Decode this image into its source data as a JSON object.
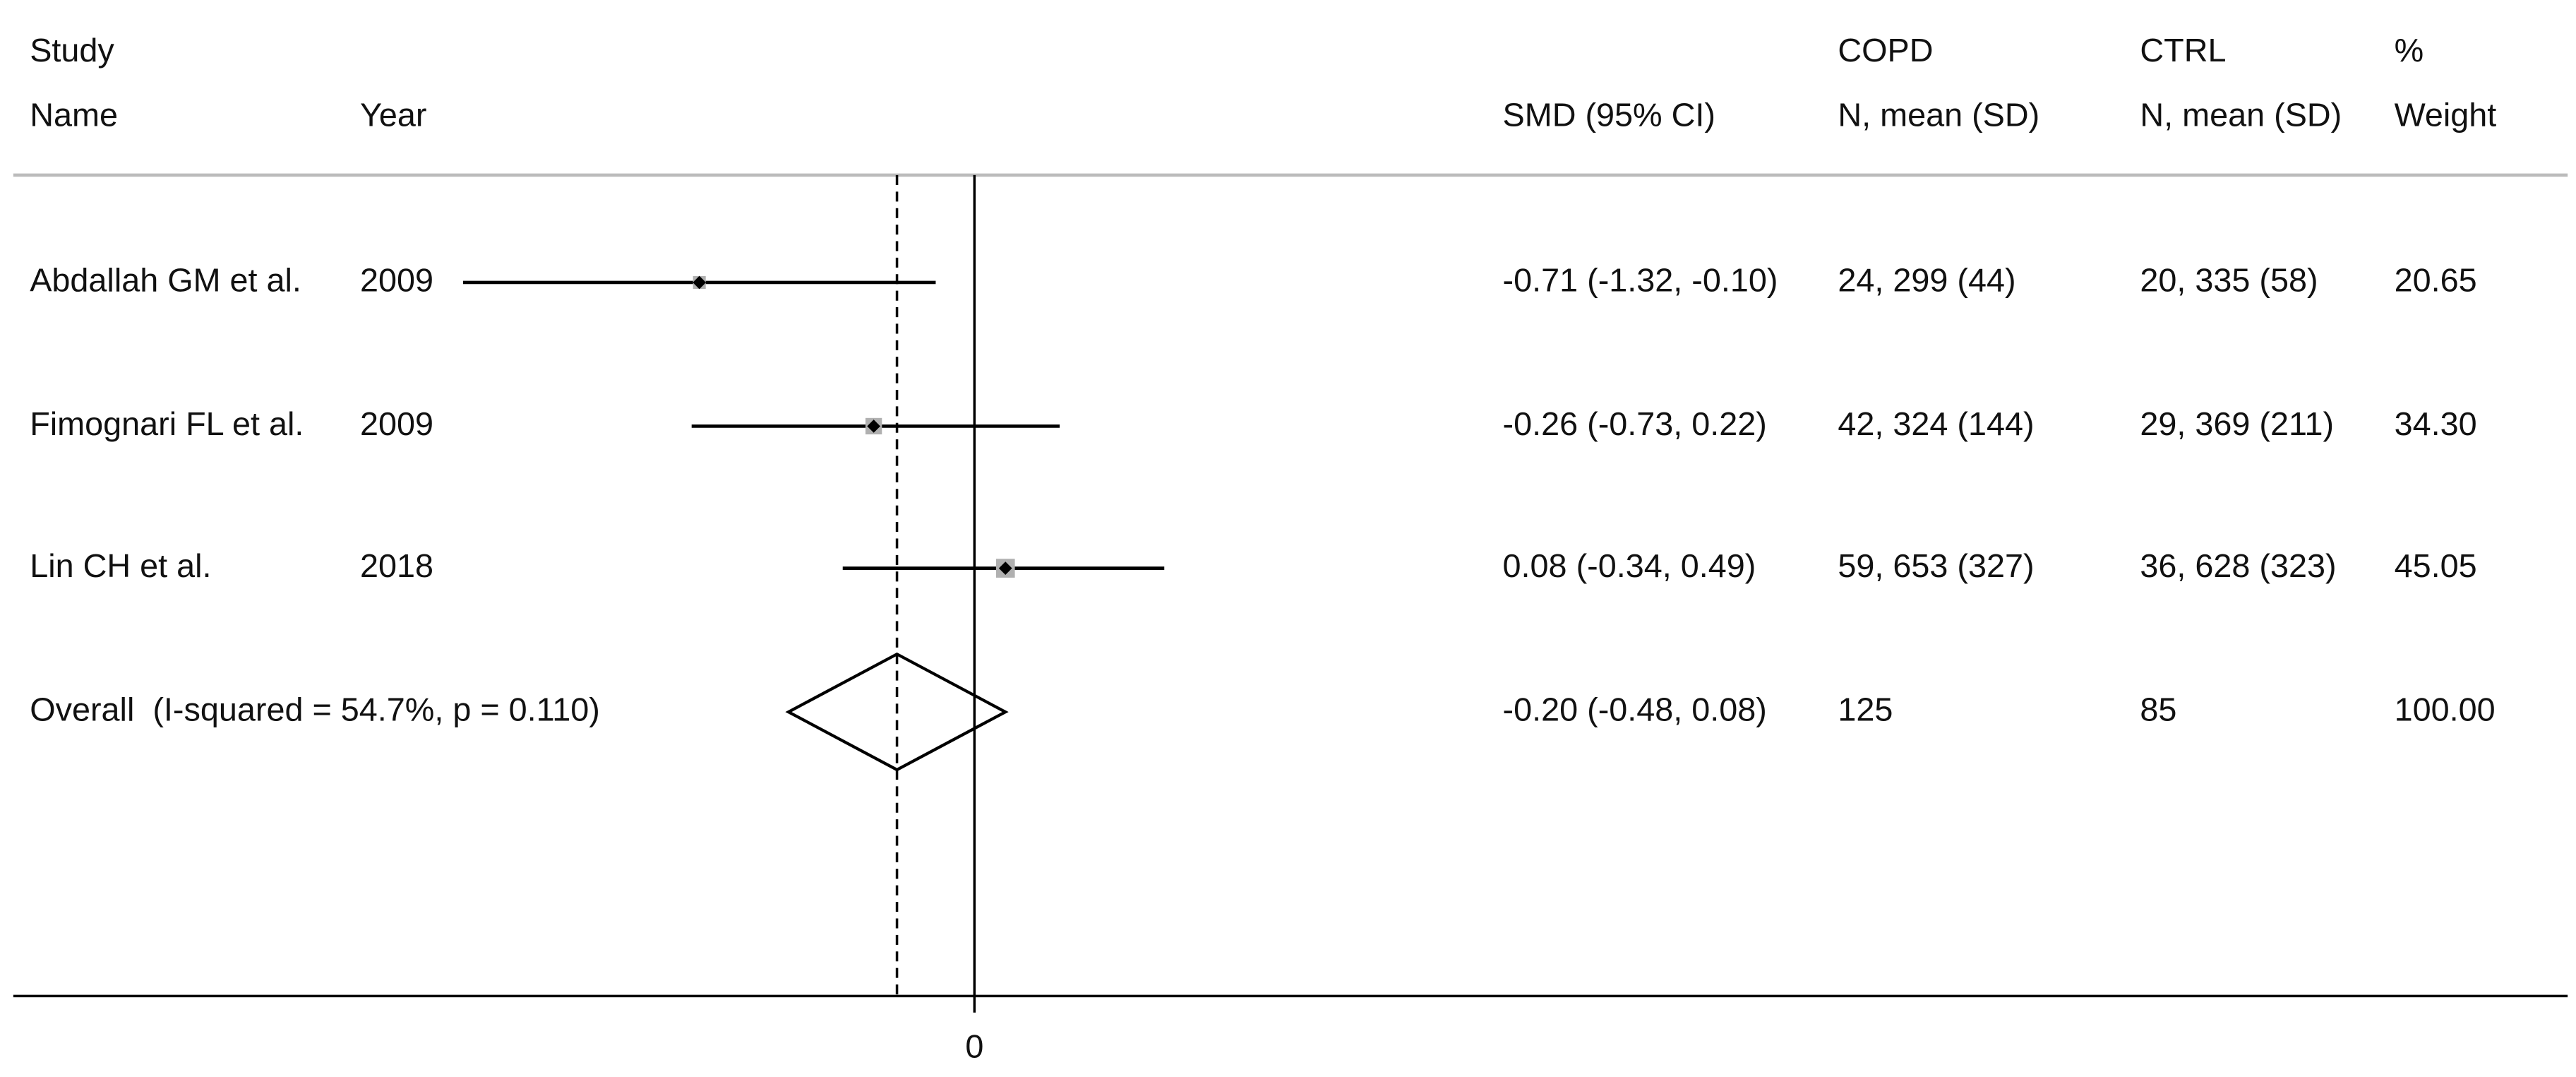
{
  "chart_data": {
    "type": "forest",
    "columns": [
      {
        "top": "Study",
        "bottom": "Name"
      },
      {
        "bottom": "Year"
      },
      {
        "bottom": "SMD (95% CI)"
      },
      {
        "top": "COPD",
        "bottom": "N, mean (SD)"
      },
      {
        "top": "CTRL",
        "bottom": "N, mean (SD)"
      },
      {
        "top": "%",
        "bottom": "Weight"
      }
    ],
    "rows": [
      [
        "Abdallah GM et al.",
        "2009",
        "-0.71 (-1.32, -0.10)",
        "24, 299 (44)",
        "20, 335 (58)",
        "20.65"
      ],
      [
        "Fimognari FL et al.",
        "2009",
        "-0.26 (-0.73, 0.22)",
        "42, 324 (144)",
        "29, 369 (211)",
        "34.30"
      ],
      [
        "Lin CH et al.",
        "2018",
        "0.08 (-0.34, 0.49)",
        "59, 653 (327)",
        "36, 628 (323)",
        "45.05"
      ]
    ],
    "values": [
      -0.71,
      -0.26,
      0.08
    ],
    "ci_low": [
      -1.32,
      -0.73,
      -0.34
    ],
    "ci_high": [
      -0.1,
      0.22,
      0.49
    ],
    "weights": [
      20.65,
      34.3,
      45.05
    ],
    "overall": {
      "label": "Overall  (I-squared = 54.7%, p = 0.110)",
      "cells": [
        "-0.20 (-0.48, 0.08)",
        "125",
        "85",
        "100.00"
      ],
      "value": -0.2,
      "ci_low": -0.48,
      "ci_high": 0.08
    },
    "xlim": [
      -1.36,
      0.69
    ],
    "xticks": [
      0
    ]
  }
}
